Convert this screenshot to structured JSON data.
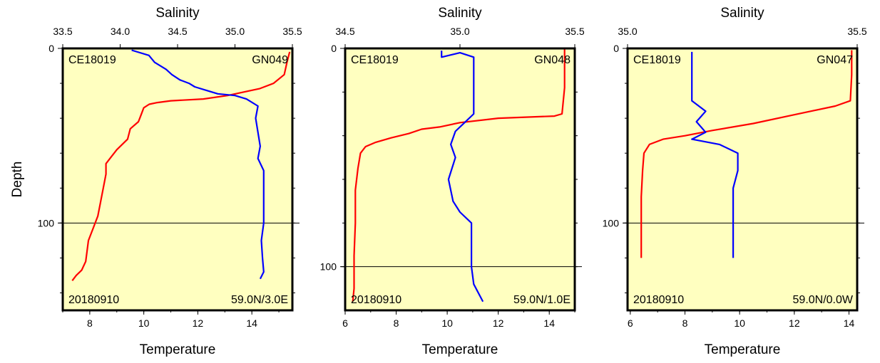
{
  "chart_data": [
    {
      "type": "line",
      "cruise": "CE18019",
      "station": "GN049",
      "date": "20180910",
      "position": "59.0N/3.0E",
      "ylabel": "Depth",
      "top_axis_label": "Salinity",
      "bottom_axis_label": "Temperature",
      "salinity_ticks": [
        "33.5",
        "34.0",
        "34.5",
        "35.0",
        "35.5"
      ],
      "temperature_ticks": [
        "8",
        "10",
        "12",
        "14"
      ],
      "depth_ticks": [
        "0",
        "100"
      ],
      "salinity_range": [
        33.5,
        35.5
      ],
      "temperature_range": [
        7,
        15.5
      ],
      "depth_range": [
        0,
        150
      ],
      "series": [
        {
          "quantity": "temperature",
          "color": "#ff0000",
          "points": [
            [
              15.4,
              2
            ],
            [
              15.3,
              8
            ],
            [
              15.2,
              15
            ],
            [
              14.8,
              20
            ],
            [
              14.3,
              23
            ],
            [
              13.7,
              25
            ],
            [
              13.1,
              27
            ],
            [
              12.2,
              29
            ],
            [
              11.0,
              30
            ],
            [
              10.5,
              31
            ],
            [
              10.2,
              32
            ],
            [
              10.0,
              34
            ],
            [
              9.9,
              38
            ],
            [
              9.8,
              42
            ],
            [
              9.5,
              46
            ],
            [
              9.4,
              52
            ],
            [
              9.0,
              58
            ],
            [
              8.8,
              62
            ],
            [
              8.6,
              66
            ],
            [
              8.6,
              72
            ],
            [
              8.5,
              80
            ],
            [
              8.4,
              88
            ],
            [
              8.3,
              96
            ],
            [
              8.1,
              104
            ],
            [
              7.95,
              110
            ],
            [
              7.9,
              116
            ],
            [
              7.85,
              122
            ],
            [
              7.7,
              127
            ],
            [
              7.5,
              130
            ],
            [
              7.35,
              133
            ]
          ]
        },
        {
          "quantity": "salinity",
          "color": "#0000ff",
          "points": [
            [
              34.1,
              1
            ],
            [
              34.25,
              4
            ],
            [
              34.3,
              8
            ],
            [
              34.4,
              12
            ],
            [
              34.45,
              15
            ],
            [
              34.52,
              18
            ],
            [
              34.6,
              20
            ],
            [
              34.65,
              22
            ],
            [
              34.75,
              24
            ],
            [
              34.85,
              26
            ],
            [
              35.0,
              27
            ],
            [
              35.1,
              29
            ],
            [
              35.2,
              33
            ],
            [
              35.18,
              40
            ],
            [
              35.2,
              48
            ],
            [
              35.22,
              56
            ],
            [
              35.2,
              63
            ],
            [
              35.25,
              70
            ],
            [
              35.25,
              80
            ],
            [
              35.25,
              90
            ],
            [
              35.25,
              100
            ],
            [
              35.23,
              110
            ],
            [
              35.24,
              120
            ],
            [
              35.25,
              128
            ],
            [
              35.22,
              132
            ]
          ]
        }
      ]
    },
    {
      "type": "line",
      "cruise": "CE18019",
      "station": "GN048",
      "date": "20180910",
      "position": "59.0N/1.0E",
      "top_axis_label": "Salinity",
      "bottom_axis_label": "Temperature",
      "salinity_ticks": [
        "34.5",
        "35.0",
        "35.5"
      ],
      "temperature_ticks": [
        "6",
        "8",
        "10",
        "12",
        "14"
      ],
      "depth_ticks": [
        "0",
        "100"
      ],
      "salinity_range": [
        34.5,
        35.5
      ],
      "temperature_range": [
        6,
        15
      ],
      "depth_range": [
        0,
        120
      ],
      "series": [
        {
          "quantity": "temperature",
          "color": "#ff0000",
          "points": [
            [
              14.6,
              0
            ],
            [
              14.6,
              18
            ],
            [
              14.5,
              30
            ],
            [
              14.2,
              31
            ],
            [
              12.0,
              32
            ],
            [
              10.5,
              34
            ],
            [
              9.7,
              36
            ],
            [
              9.0,
              37
            ],
            [
              8.5,
              39
            ],
            [
              7.8,
              41
            ],
            [
              7.2,
              43
            ],
            [
              6.8,
              45
            ],
            [
              6.6,
              48
            ],
            [
              6.5,
              55
            ],
            [
              6.4,
              65
            ],
            [
              6.4,
              80
            ],
            [
              6.35,
              95
            ],
            [
              6.35,
              110
            ],
            [
              6.3,
              116
            ]
          ]
        },
        {
          "quantity": "salinity",
          "color": "#0000ff",
          "points": [
            [
              34.92,
              1
            ],
            [
              34.92,
              4
            ],
            [
              35.0,
              2
            ],
            [
              35.06,
              4
            ],
            [
              35.06,
              10
            ],
            [
              35.06,
              20
            ],
            [
              35.06,
              30
            ],
            [
              35.02,
              34
            ],
            [
              34.98,
              38
            ],
            [
              34.96,
              44
            ],
            [
              34.98,
              50
            ],
            [
              34.95,
              60
            ],
            [
              34.97,
              70
            ],
            [
              35.0,
              75
            ],
            [
              35.05,
              80
            ],
            [
              35.05,
              90
            ],
            [
              35.05,
              100
            ],
            [
              35.06,
              108
            ],
            [
              35.09,
              114
            ],
            [
              35.1,
              116
            ]
          ]
        }
      ]
    },
    {
      "type": "line",
      "cruise": "CE18019",
      "station": "GN047",
      "date": "20180910",
      "position": "59.0N/0.0W",
      "top_axis_label": "Salinity",
      "bottom_axis_label": "Temperature",
      "salinity_ticks": [
        "35.0",
        "35.5"
      ],
      "temperature_ticks": [
        "6",
        "8",
        "10",
        "12",
        "14"
      ],
      "depth_ticks": [
        "0",
        "100"
      ],
      "salinity_range": [
        35.0,
        35.5
      ],
      "temperature_range": [
        5.9,
        14.3
      ],
      "depth_range": [
        0,
        150
      ],
      "series": [
        {
          "quantity": "temperature",
          "color": "#ff0000",
          "points": [
            [
              14.1,
              1
            ],
            [
              14.1,
              15
            ],
            [
              14.05,
              30
            ],
            [
              13.5,
              33
            ],
            [
              12.0,
              38
            ],
            [
              10.5,
              43
            ],
            [
              9.0,
              47
            ],
            [
              8.0,
              50
            ],
            [
              7.2,
              52
            ],
            [
              6.7,
              55
            ],
            [
              6.5,
              60
            ],
            [
              6.45,
              70
            ],
            [
              6.4,
              85
            ],
            [
              6.4,
              100
            ],
            [
              6.4,
              115
            ],
            [
              6.4,
              120
            ]
          ]
        },
        {
          "quantity": "salinity",
          "color": "#0000ff",
          "points": [
            [
              35.14,
              2
            ],
            [
              35.14,
              10
            ],
            [
              35.14,
              20
            ],
            [
              35.14,
              30
            ],
            [
              35.17,
              36
            ],
            [
              35.15,
              42
            ],
            [
              35.17,
              48
            ],
            [
              35.14,
              52
            ],
            [
              35.2,
              55
            ],
            [
              35.24,
              60
            ],
            [
              35.24,
              70
            ],
            [
              35.23,
              80
            ],
            [
              35.23,
              90
            ],
            [
              35.23,
              100
            ],
            [
              35.23,
              110
            ],
            [
              35.23,
              120
            ]
          ]
        }
      ]
    }
  ]
}
